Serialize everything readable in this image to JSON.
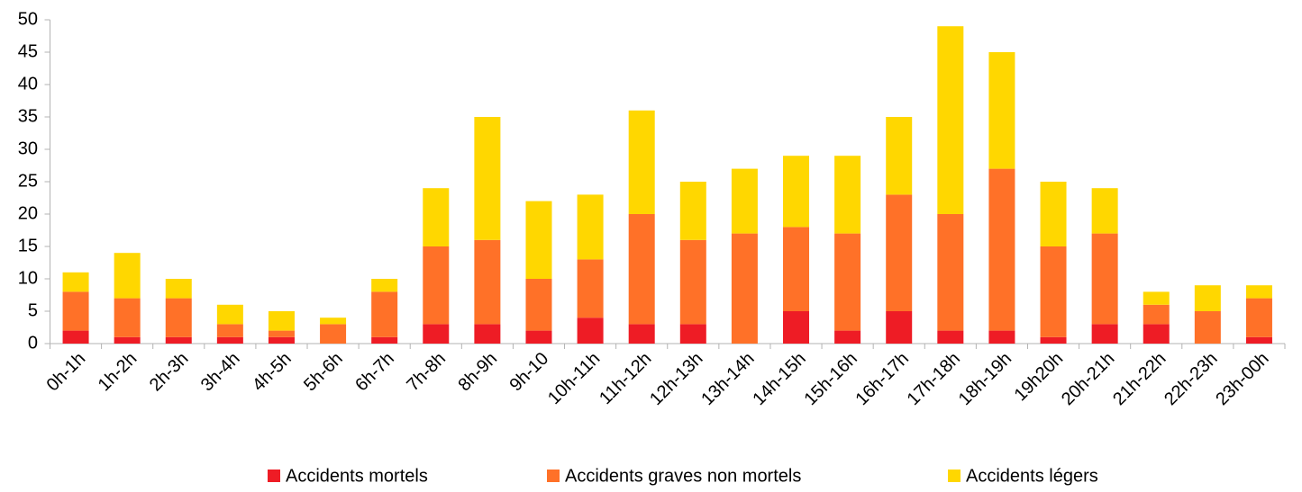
{
  "chart_data": {
    "type": "stacked_bar",
    "categories": [
      "0h-1h",
      "1h-2h",
      "2h-3h",
      "3h-4h",
      "4h-5h",
      "5h-6h",
      "6h-7h",
      "7h-8h",
      "8h-9h",
      "9h-10",
      "10h-11h",
      "11h-12h",
      "12h-13h",
      "13h-14h",
      "14h-15h",
      "15h-16h",
      "16h-17h",
      "17h-18h",
      "18h-19h",
      "19h20h",
      "20h-21h",
      "21h-22h",
      "22h-23h",
      "23h-00h"
    ],
    "series": [
      {
        "name": "Accidents mortels",
        "color": "#ee1c25",
        "values": [
          2,
          1,
          1,
          1,
          1,
          0,
          1,
          3,
          3,
          2,
          4,
          3,
          3,
          0,
          5,
          2,
          5,
          2,
          2,
          1,
          3,
          3,
          0,
          1
        ]
      },
      {
        "name": "Accidents graves non mortels",
        "color": "#ff7128",
        "values": [
          6,
          6,
          6,
          2,
          1,
          3,
          7,
          12,
          13,
          8,
          9,
          17,
          13,
          17,
          13,
          15,
          18,
          18,
          25,
          14,
          14,
          3,
          5,
          6
        ]
      },
      {
        "name": "Accidents légers",
        "color": "#ffd700",
        "values": [
          3,
          7,
          3,
          3,
          3,
          1,
          2,
          9,
          19,
          12,
          10,
          16,
          9,
          10,
          11,
          12,
          12,
          29,
          18,
          10,
          7,
          2,
          4,
          2
        ]
      }
    ],
    "ylim": [
      0,
      50
    ],
    "yticks": [
      0,
      5,
      10,
      15,
      20,
      25,
      30,
      35,
      40,
      45,
      50
    ],
    "grid": false,
    "legend": "bottom"
  }
}
